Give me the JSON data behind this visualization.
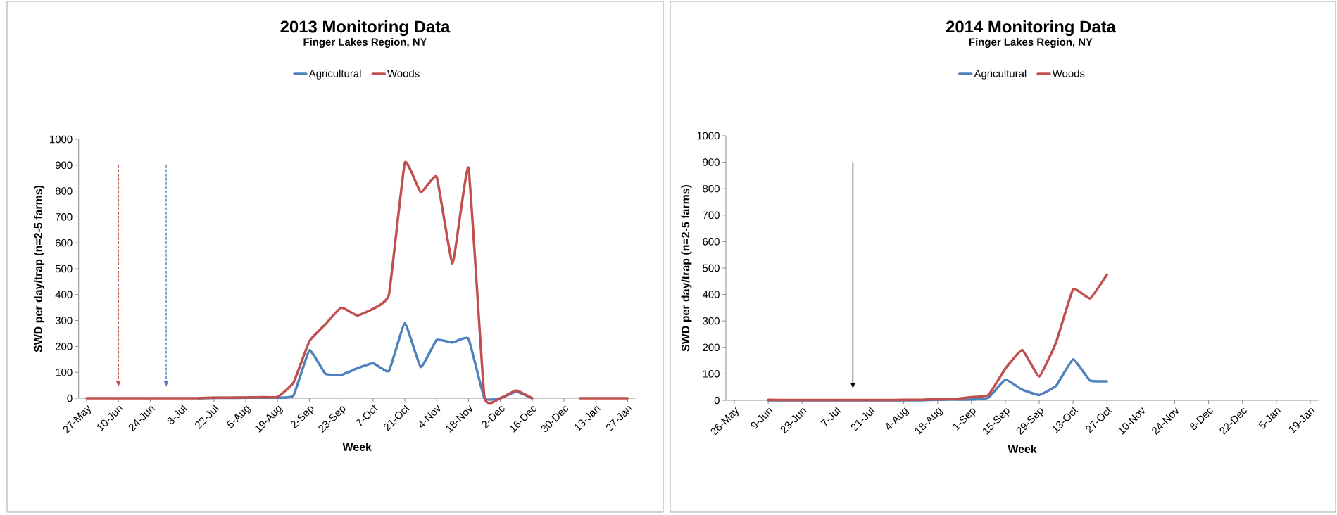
{
  "chart_data": [
    {
      "type": "line",
      "title": "2013 Monitoring Data",
      "subtitle": "Finger Lakes Region, NY",
      "xlabel": "Week",
      "ylabel": "SWD per day/trap (n=2-5 farms)",
      "legend": "top",
      "marker": "none",
      "categories": [
        "27-May",
        null,
        "10-Jun",
        null,
        "24-Jun",
        null,
        "8-Jul",
        null,
        "22-Jul",
        null,
        "5-Aug",
        null,
        "19-Aug",
        null,
        "2-Sep",
        null,
        "23-Sep",
        null,
        "7-Oct",
        null,
        "21-Oct",
        null,
        "4-Nov",
        null,
        "18-Nov",
        null,
        "2-Dec",
        null,
        "16-Dec",
        null,
        "30-Dec",
        null,
        "13-Jan",
        null,
        "27-Jan"
      ],
      "series": [
        {
          "name": "Agricultural",
          "color": "#4f81bd",
          "values": [
            null,
            null,
            null,
            null,
            null,
            null,
            null,
            0,
            1,
            1,
            2,
            2,
            2,
            10,
            185,
            95,
            90,
            115,
            135,
            105,
            290,
            120,
            225,
            215,
            230,
            0,
            0,
            25,
            0,
            null,
            null,
            null,
            null,
            null,
            null
          ]
        },
        {
          "name": "Woods",
          "color": "#c0504d",
          "values": [
            0,
            0,
            0,
            0,
            0,
            0,
            0,
            0,
            2,
            2,
            3,
            4,
            5,
            60,
            220,
            285,
            350,
            320,
            345,
            400,
            910,
            795,
            855,
            520,
            890,
            5,
            0,
            30,
            0,
            null,
            null,
            0,
            0,
            0,
            0
          ]
        }
      ],
      "ylim": [
        0,
        1000
      ],
      "yticks": [
        0,
        100,
        200,
        300,
        400,
        500,
        600,
        700,
        800,
        900,
        1000
      ]
    },
    {
      "type": "line",
      "title": "2014 Monitoring Data",
      "subtitle": "Finger Lakes Region, NY",
      "xlabel": "Week",
      "ylabel": "SWD per day/trap (n=2-5 farms)",
      "legend": "top",
      "marker": "none",
      "categories": [
        "26-May",
        null,
        "9-Jun",
        null,
        "23-Jun",
        null,
        "7-Jul",
        null,
        "21-Jul",
        null,
        "4-Aug",
        null,
        "18-Aug",
        null,
        "1-Sep",
        null,
        "15-Sep",
        null,
        "29-Sep",
        null,
        "13-Oct",
        null,
        "27-Oct",
        null,
        "10-Nov",
        null,
        "24-Nov",
        null,
        "8-Dec",
        null,
        "22-Dec",
        null,
        "5-Jan",
        null,
        "19-Jan"
      ],
      "series": [
        {
          "name": "Agricultural",
          "color": "#4f81bd",
          "values": [
            null,
            null,
            0,
            0,
            0,
            0,
            0,
            0,
            0,
            0,
            0,
            0,
            2,
            3,
            3,
            10,
            78,
            40,
            20,
            55,
            155,
            75,
            72,
            null,
            null,
            null,
            null,
            null,
            null,
            null,
            null,
            null,
            null,
            null,
            null
          ]
        },
        {
          "name": "Woods",
          "color": "#c0504d",
          "values": [
            null,
            null,
            2,
            1,
            1,
            1,
            1,
            1,
            1,
            1,
            2,
            2,
            4,
            5,
            12,
            20,
            120,
            190,
            90,
            220,
            420,
            385,
            475,
            null,
            null,
            null,
            null,
            null,
            null,
            null,
            null,
            null,
            null,
            null,
            null
          ]
        }
      ],
      "ylim": [
        0,
        1000
      ],
      "yticks": [
        0,
        100,
        200,
        300,
        400,
        500,
        600,
        700,
        800,
        900,
        1000
      ]
    }
  ]
}
